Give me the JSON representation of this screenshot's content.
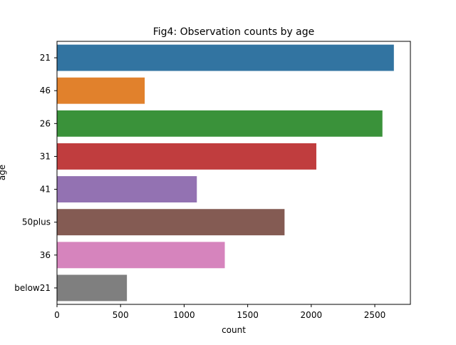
{
  "chart_data": {
    "type": "bar",
    "orientation": "horizontal",
    "title": "Fig4: Observation counts by age",
    "xlabel": "count",
    "ylabel": "age",
    "categories": [
      "21",
      "46",
      "26",
      "31",
      "41",
      "50plus",
      "36",
      "below21"
    ],
    "values": [
      2650,
      690,
      2560,
      2040,
      1100,
      1790,
      1320,
      550
    ],
    "colors": [
      "#3274a1",
      "#e1812c",
      "#3a923a",
      "#c03d3e",
      "#9372b2",
      "#845b53",
      "#d684bd",
      "#7f7f7f"
    ],
    "xlim": [
      0,
      2780
    ],
    "xticks": [
      0,
      500,
      1000,
      1500,
      2000,
      2500
    ],
    "grid": false,
    "legend": "none"
  }
}
